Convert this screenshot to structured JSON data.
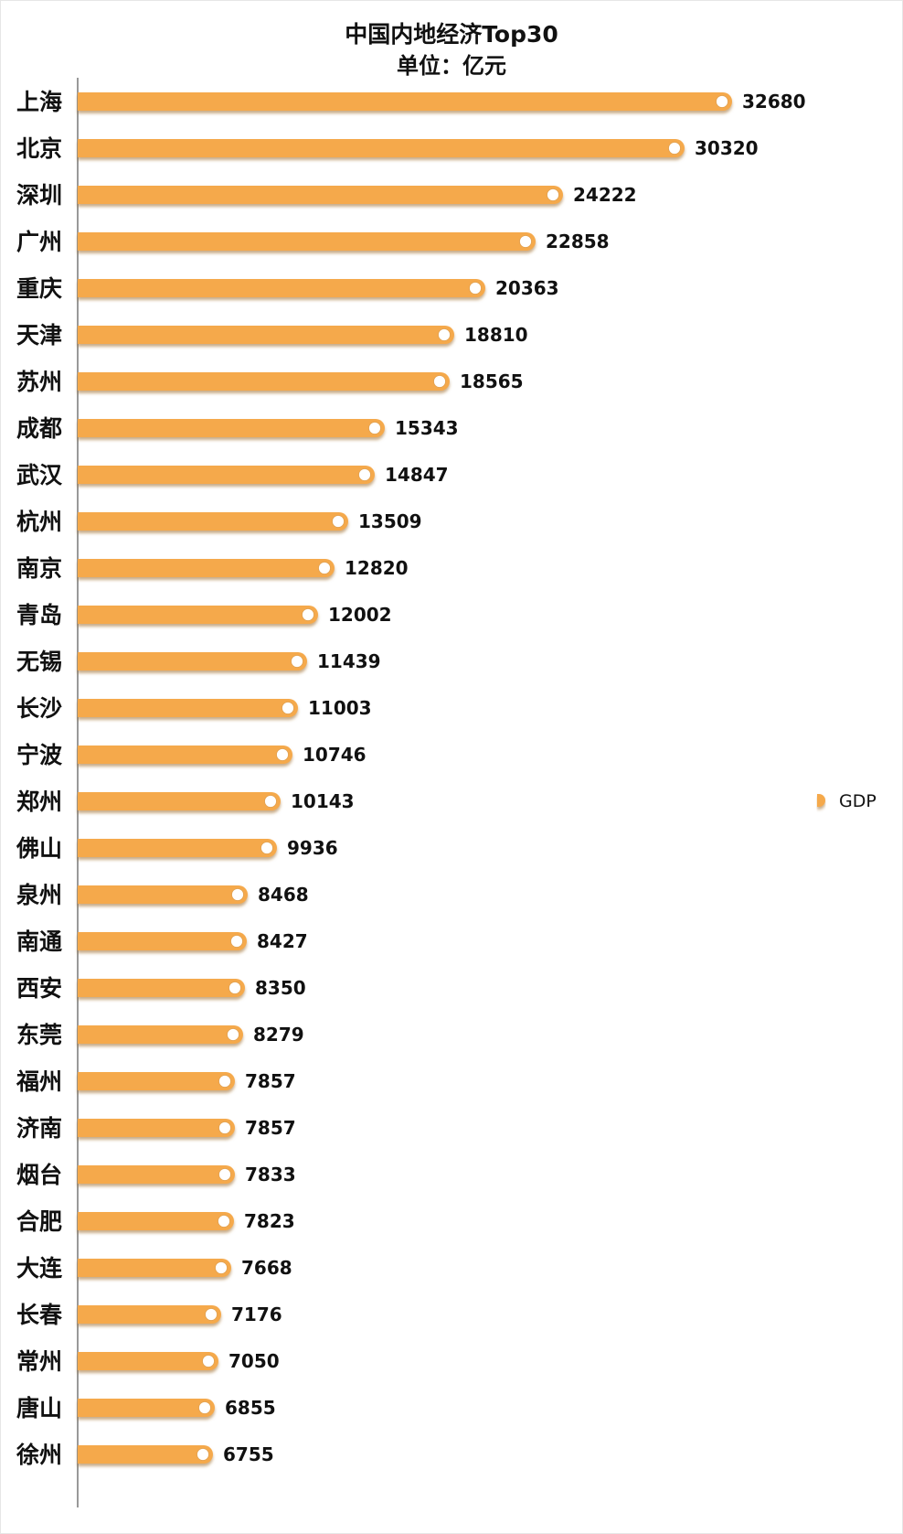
{
  "chart_data": {
    "type": "bar",
    "orientation": "horizontal",
    "title": "中国内地经济Top30",
    "subtitle": "单位：亿元",
    "xlabel": "",
    "ylabel": "",
    "xlim": [
      0,
      35000
    ],
    "grid": false,
    "legend_position": "right",
    "categories": [
      "上海",
      "北京",
      "深圳",
      "广州",
      "重庆",
      "天津",
      "苏州",
      "成都",
      "武汉",
      "杭州",
      "南京",
      "青岛",
      "无锡",
      "长沙",
      "宁波",
      "郑州",
      "佛山",
      "泉州",
      "南通",
      "西安",
      "东莞",
      "福州",
      "济南",
      "烟台",
      "合肥",
      "大连",
      "长春",
      "常州",
      "唐山",
      "徐州"
    ],
    "series": [
      {
        "name": "GDP",
        "color": "#f5a94b",
        "values": [
          32680,
          30320,
          24222,
          22858,
          20363,
          18810,
          18565,
          15343,
          14847,
          13509,
          12820,
          12002,
          11439,
          11003,
          10746,
          10143,
          9936,
          8468,
          8427,
          8350,
          8279,
          7857,
          7857,
          7833,
          7823,
          7668,
          7176,
          7050,
          6855,
          6755
        ]
      }
    ],
    "colors": {
      "bar": "#f5a94b",
      "bar_shadow": "#c98a3a",
      "marker": "#ffffff",
      "axis": "#999999",
      "text": "#111111"
    }
  }
}
